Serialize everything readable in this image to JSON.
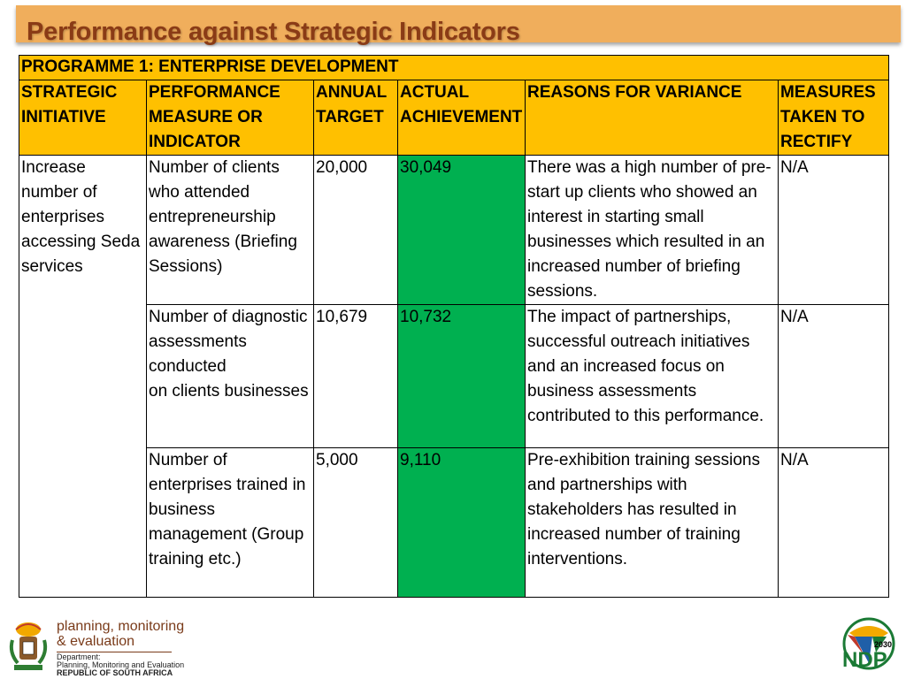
{
  "slide": {
    "title": "Performance against Strategic Indicators"
  },
  "table": {
    "programme": "PROGRAMME 1: ENTERPRISE DEVELOPMENT",
    "headers": {
      "strategic_initiative": "STRATEGIC INITIATIVE",
      "performance_measure": "PERFORMANCE MEASURE OR INDICATOR",
      "annual_target": "ANNUAL TARGET",
      "actual_achievement": "ACTUAL ACHIEVEMENT",
      "reasons": "REASONS FOR VARIANCE",
      "measures": "MEASURES TAKEN TO RECTIFY"
    },
    "strategic_initiative": "Increase number of enterprises accessing Seda services",
    "rows": [
      {
        "measure": "Number of clients who attended entrepreneurship awareness (Briefing Sessions)",
        "target": "20,000",
        "actual": "30,049",
        "reason": "There was a high number of pre-start up clients who showed an interest in starting small businesses which resulted in an increased number of briefing sessions.",
        "rectify": "N/A"
      },
      {
        "measure": "Number of diagnostic assessments conducted\non clients businesses",
        "target": "10,679",
        "actual": "10,732",
        "reason": "The impact of partnerships, successful outreach initiatives and an increased focus on business assessments contributed to this performance.",
        "rectify": "N/A"
      },
      {
        "measure": "Number of enterprises trained in business management (Group training etc.)",
        "target": "5,000",
        "actual": "9,110",
        "reason": "Pre-exhibition training sessions and partnerships with\nstakeholders has resulted in increased number of training interventions.",
        "rectify": "N/A"
      }
    ]
  },
  "footer": {
    "pme_line1": "planning, monitoring",
    "pme_line2": "& evaluation",
    "dept_line1": "Department:",
    "dept_line2": "Planning, Monitoring and Evaluation",
    "dept_line3": "REPUBLIC OF SOUTH AFRICA",
    "ndp_text": "NDP",
    "ndp_year": "2030"
  },
  "colors": {
    "title_bar": "#f0ae5c",
    "title_text": "#8a3b16",
    "header_fill": "#ffc000",
    "achievement_fill": "#00b050"
  }
}
